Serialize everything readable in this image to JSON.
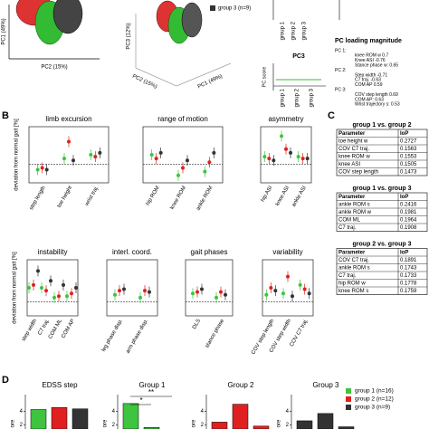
{
  "panel_labels": [
    "B",
    "C",
    "D"
  ],
  "panel_a": {
    "axis_labels": [
      "PC1 (49%)",
      "PC2 (15%)",
      "PC3 (12%)",
      "PC2 (15%)",
      "PC1 (49%)"
    ],
    "legend": "group 3 (n=9)",
    "score_plot": {
      "title": "PC3",
      "ylabel": "PC score",
      "categories": [
        "group 1",
        "group 2",
        "group 3"
      ]
    },
    "top_plot_categories": [
      "group 1",
      "group 2",
      "group 3"
    ],
    "loading": {
      "title": "PC loading magnitude",
      "lines": [
        "PC 1:",
        "knee ROM w 0.7",
        "Knee ASI -0.76",
        "Stance phase w: 0.65",
        "PC 2:",
        "Step width -0.71",
        "C7 traj. -0.63",
        "COM AP 0.59",
        "PC 3:",
        "COV step length 0.69",
        "COM AP: 0.63",
        "Wrist trajectory s: 0.53"
      ]
    }
  },
  "panel_b": {
    "ylabel": "deviation from normal gait [%]",
    "colors": [
      "#3ec43e",
      "#e02020",
      "#333333"
    ],
    "legend": [
      "group 1 (n=16)",
      "group 2 (n=12)",
      "group 3 (n=9)"
    ],
    "charts": [
      {
        "title": "limb excursion",
        "ylim": [
          -1,
          2
        ],
        "categories": [
          "step length",
          "toe height",
          "wrist traj."
        ],
        "series": [
          [
            -0.3,
            0.3,
            0.5
          ],
          [
            -0.2,
            1.2,
            0.4
          ],
          [
            -0.3,
            0.2,
            0.6
          ]
        ]
      },
      {
        "title": "range of motion",
        "ylim": [
          -1,
          2
        ],
        "categories": [
          "hip ROM",
          "knee ROM",
          "ankle ROM"
        ],
        "series": [
          [
            0.5,
            -0.6,
            -0.4
          ],
          [
            0.3,
            -0.2,
            0.1
          ],
          [
            0.6,
            0.2,
            0.6
          ]
        ]
      },
      {
        "title": "asymmetry",
        "ylim": [
          -1,
          2
        ],
        "categories": [
          "hip ASI",
          "knee ASI",
          "ankle ASI"
        ],
        "series": [
          [
            0.4,
            1.5,
            0.4
          ],
          [
            0.3,
            0.8,
            0.3
          ],
          [
            0.2,
            0.6,
            0.3
          ]
        ]
      },
      {
        "title": "instability",
        "ylim": [
          -1,
          3
        ],
        "categories": [
          "step width",
          "C7 traj.",
          "COM ML",
          "COM AP"
        ],
        "series": [
          [
            1,
            1,
            0.3,
            0.4
          ],
          [
            1.2,
            0.8,
            0.4,
            0.6
          ],
          [
            2.2,
            1.5,
            1.2,
            1
          ]
        ]
      },
      {
        "title": "interl. coord.",
        "ylim": [
          -1,
          3
        ],
        "categories": [
          "leg phase disp.",
          "arm phase disp."
        ],
        "series": [
          [
            0.5,
            0.3
          ],
          [
            0.8,
            0.8
          ],
          [
            0.9,
            0.7
          ]
        ]
      },
      {
        "title": "gait phases",
        "ylim": [
          -1,
          3
        ],
        "categories": [
          "DLS",
          "stance phase"
        ],
        "series": [
          [
            0.6,
            0.3
          ],
          [
            0.7,
            0.7
          ],
          [
            0.9,
            0.5
          ]
        ]
      },
      {
        "title": "variability",
        "ylim": [
          -1,
          3
        ],
        "categories": [
          "COV step length",
          "COV step width",
          "COV C7 traj."
        ],
        "series": [
          [
            0.5,
            0.6,
            1.2
          ],
          [
            1,
            1.8,
            0.9
          ],
          [
            0.8,
            0.4,
            0.6
          ]
        ]
      }
    ]
  },
  "panel_c": {
    "tables": [
      {
        "title": "group 1 vs. group 2",
        "header": [
          "Parameter",
          "IoP"
        ],
        "rows": [
          [
            "toe height w",
            "0.2727"
          ],
          [
            "COV C7 traj.",
            "0.1563"
          ],
          [
            "knee ROM w",
            "0.1553"
          ],
          [
            "knee ASI",
            "0.1505"
          ],
          [
            "COV step length",
            "0.1473"
          ]
        ]
      },
      {
        "title": "group 1 vs. group 3",
        "header": [
          "Parameter",
          "IoP"
        ],
        "rows": [
          [
            "ankle ROM s",
            "0.2416"
          ],
          [
            "ankle ROM w",
            "0.1981"
          ],
          [
            "COM ML",
            "0.1964"
          ],
          [
            "C7 traj.",
            "0.1908"
          ]
        ]
      },
      {
        "title": "group 2 vs. group 3",
        "header": [
          "Parameter",
          "IoP"
        ],
        "rows": [
          [
            "COV C7 traj.",
            "0.1891"
          ],
          [
            "ankle ROM s",
            "0.1743"
          ],
          [
            "C7 traj.",
            "0.1733"
          ],
          [
            "hip ROM w",
            "0.1778"
          ],
          [
            "knee ROM s",
            "0.1759"
          ]
        ]
      }
    ]
  },
  "panel_d": {
    "ylim": [
      0,
      6
    ],
    "yticks": [
      2,
      4
    ],
    "ylabel": "ore",
    "charts": [
      {
        "title": "EDSS step",
        "values": [
          4.3,
          4.6,
          4.4
        ],
        "colors": [
          "#3ec43e",
          "#e02020",
          "#333333"
        ]
      },
      {
        "title": "Group 1",
        "values": [
          5.2,
          1.6,
          1
        ],
        "colors": [
          "#3ec43e",
          "#3ec43e",
          "#3ec43e"
        ],
        "annotations": [
          "**",
          "*"
        ]
      },
      {
        "title": "Group 2",
        "values": [
          2.4,
          5.1,
          1.8
        ],
        "colors": [
          "#e02020",
          "#e02020",
          "#e02020"
        ]
      },
      {
        "title": "Group 3",
        "values": [
          2.6,
          3.7,
          1.7
        ],
        "colors": [
          "#333333",
          "#333333",
          "#333333"
        ]
      }
    ]
  }
}
